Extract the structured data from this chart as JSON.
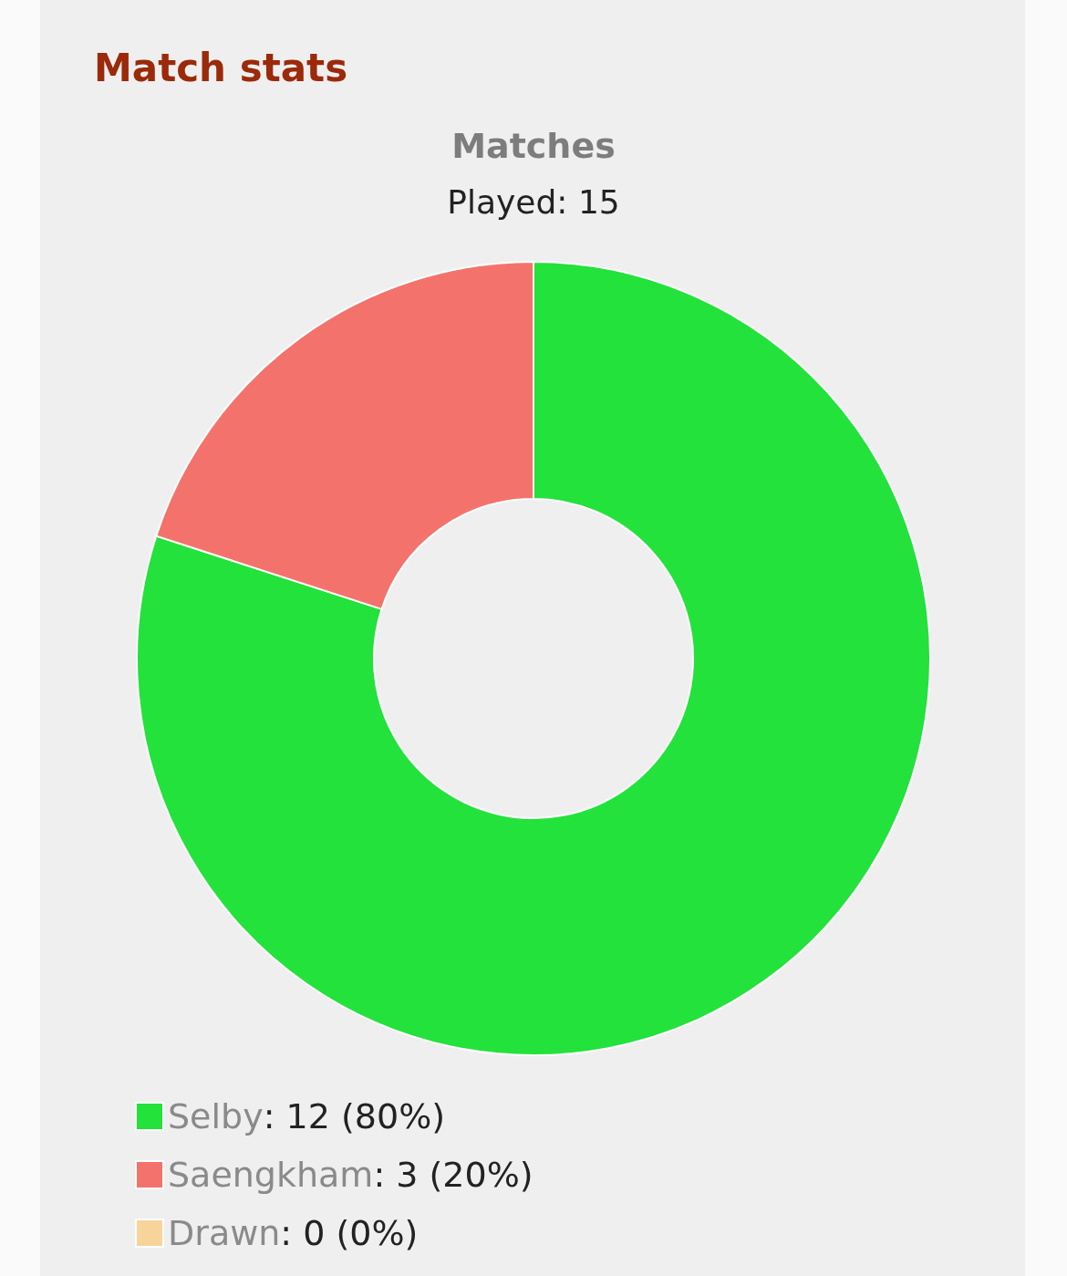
{
  "chart_data": {
    "type": "donut",
    "title": "Match stats",
    "subtitle": "Matches",
    "annotations": [
      "Played: 15"
    ],
    "categories": [
      "Selby",
      "Saengkham",
      "Drawn"
    ],
    "values": [
      12,
      3,
      0
    ],
    "colors": [
      "#22e23b",
      "#f3736c",
      "#f8d49a"
    ],
    "value_labels": [
      ": 12 (80%)",
      ": 3 (20%)",
      ": 0 (0%)"
    ],
    "legend": "bottom left"
  }
}
